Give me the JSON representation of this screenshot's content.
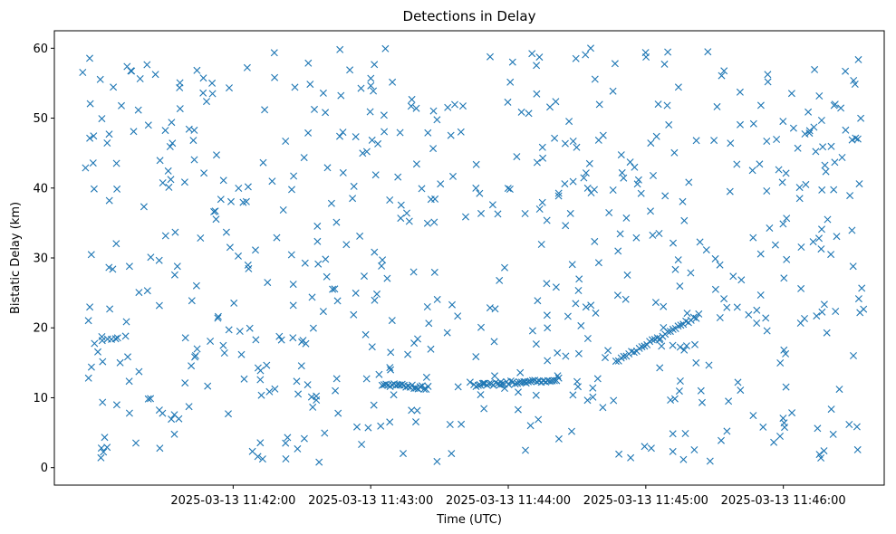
{
  "chart_data": {
    "type": "scatter",
    "title": "Detections in Delay",
    "xlabel": "Time (UTC)",
    "ylabel": "Bistatic Delay (km)",
    "x_start": "2025-03-13 11:40:53",
    "x_end": "2025-03-13 11:46:35",
    "xlim": [
      "2025-03-13 11:40:42",
      "2025-03-13 11:46:44"
    ],
    "ylim": [
      -2.5,
      62.5
    ],
    "xticks": [
      "2025-03-13 11:42:00",
      "2025-03-13 11:43:00",
      "2025-03-13 11:44:00",
      "2025-03-13 11:45:00",
      "2025-03-13 11:46:00"
    ],
    "yticks": [
      0,
      10,
      20,
      30,
      40,
      50,
      60
    ],
    "marker": "x",
    "color": "#1f77b4",
    "grid": false,
    "legend": "none",
    "noise_count": 640,
    "noise_delay_range": [
      0.5,
      60
    ],
    "tracks": [
      {
        "start": "2025-03-13 11:43:05",
        "end": "2025-03-13 11:43:25",
        "delay_start": 11.9,
        "delay_end": 11.4,
        "points": 24
      },
      {
        "start": "2025-03-13 11:43:45",
        "end": "2025-03-13 11:44:22",
        "delay_start": 11.8,
        "delay_end": 12.6,
        "points": 40
      },
      {
        "start": "2025-03-13 11:44:47",
        "end": "2025-03-13 11:45:22",
        "delay_start": 15.3,
        "delay_end": 21.5,
        "points": 32
      }
    ]
  }
}
